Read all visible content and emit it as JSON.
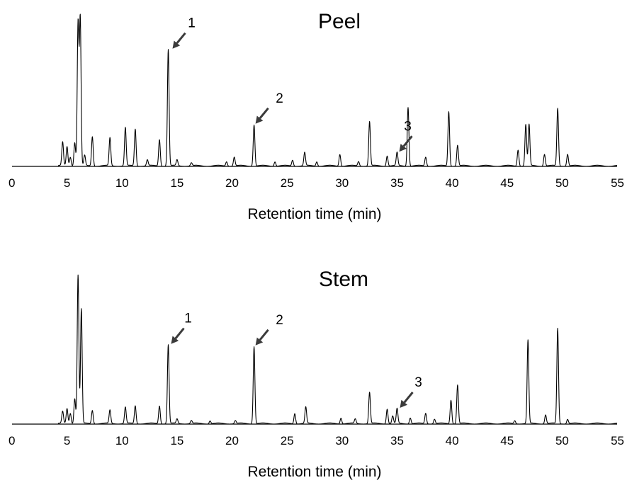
{
  "chart_data": [
    {
      "type": "line",
      "title": "Peel",
      "xlabel": "Retention time (min)",
      "ylabel": "",
      "xlim": [
        0,
        55
      ],
      "x_ticks": [
        0,
        5,
        10,
        15,
        20,
        25,
        30,
        35,
        40,
        45,
        50,
        55
      ],
      "grid": false,
      "legend": "none",
      "peaks": [
        {
          "x": 4.6,
          "y": 0.16
        },
        {
          "x": 5.0,
          "y": 0.13
        },
        {
          "x": 5.3,
          "y": 0.06
        },
        {
          "x": 5.7,
          "y": 0.16
        },
        {
          "x": 6.0,
          "y": 0.97
        },
        {
          "x": 6.2,
          "y": 1.0
        },
        {
          "x": 6.6,
          "y": 0.07
        },
        {
          "x": 7.3,
          "y": 0.2
        },
        {
          "x": 8.9,
          "y": 0.19
        },
        {
          "x": 10.3,
          "y": 0.26
        },
        {
          "x": 11.2,
          "y": 0.25
        },
        {
          "x": 12.3,
          "y": 0.04
        },
        {
          "x": 13.4,
          "y": 0.18
        },
        {
          "x": 14.2,
          "y": 0.79
        },
        {
          "x": 15.0,
          "y": 0.04
        },
        {
          "x": 16.3,
          "y": 0.02
        },
        {
          "x": 19.5,
          "y": 0.03
        },
        {
          "x": 20.2,
          "y": 0.06
        },
        {
          "x": 22.0,
          "y": 0.28
        },
        {
          "x": 23.9,
          "y": 0.03
        },
        {
          "x": 25.5,
          "y": 0.04
        },
        {
          "x": 26.6,
          "y": 0.09
        },
        {
          "x": 27.7,
          "y": 0.03
        },
        {
          "x": 29.8,
          "y": 0.08
        },
        {
          "x": 31.5,
          "y": 0.03
        },
        {
          "x": 32.5,
          "y": 0.3
        },
        {
          "x": 34.1,
          "y": 0.07
        },
        {
          "x": 35.0,
          "y": 0.09
        },
        {
          "x": 36.0,
          "y": 0.4
        },
        {
          "x": 37.6,
          "y": 0.06
        },
        {
          "x": 39.7,
          "y": 0.37
        },
        {
          "x": 40.5,
          "y": 0.14
        },
        {
          "x": 46.0,
          "y": 0.11
        },
        {
          "x": 46.7,
          "y": 0.28
        },
        {
          "x": 47.0,
          "y": 0.28
        },
        {
          "x": 48.4,
          "y": 0.08
        },
        {
          "x": 49.6,
          "y": 0.39
        },
        {
          "x": 50.5,
          "y": 0.08
        }
      ],
      "annotations": [
        {
          "label": "1",
          "x": 14.2,
          "y": 0.79
        },
        {
          "label": "2",
          "x": 22.0,
          "y": 0.28
        },
        {
          "label": "3",
          "x": 35.0,
          "y": 0.09
        }
      ]
    },
    {
      "type": "line",
      "title": "Stem",
      "xlabel": "Retention time (min)",
      "ylabel": "",
      "xlim": [
        0,
        55
      ],
      "x_ticks": [
        0,
        5,
        10,
        15,
        20,
        25,
        30,
        35,
        40,
        45,
        50,
        55
      ],
      "grid": false,
      "legend": "none",
      "peaks": [
        {
          "x": 4.6,
          "y": 0.08
        },
        {
          "x": 5.0,
          "y": 0.1
        },
        {
          "x": 5.3,
          "y": 0.07
        },
        {
          "x": 5.7,
          "y": 0.17
        },
        {
          "x": 6.0,
          "y": 1.0
        },
        {
          "x": 6.3,
          "y": 0.77
        },
        {
          "x": 7.3,
          "y": 0.09
        },
        {
          "x": 8.9,
          "y": 0.09
        },
        {
          "x": 10.3,
          "y": 0.11
        },
        {
          "x": 11.2,
          "y": 0.12
        },
        {
          "x": 13.4,
          "y": 0.12
        },
        {
          "x": 14.2,
          "y": 0.53
        },
        {
          "x": 15.0,
          "y": 0.03
        },
        {
          "x": 16.3,
          "y": 0.02
        },
        {
          "x": 18.0,
          "y": 0.02
        },
        {
          "x": 20.3,
          "y": 0.02
        },
        {
          "x": 22.0,
          "y": 0.52
        },
        {
          "x": 25.7,
          "y": 0.07
        },
        {
          "x": 26.7,
          "y": 0.11
        },
        {
          "x": 29.9,
          "y": 0.04
        },
        {
          "x": 31.2,
          "y": 0.03
        },
        {
          "x": 32.5,
          "y": 0.21
        },
        {
          "x": 34.1,
          "y": 0.1
        },
        {
          "x": 34.6,
          "y": 0.05
        },
        {
          "x": 35.0,
          "y": 0.1
        },
        {
          "x": 36.2,
          "y": 0.04
        },
        {
          "x": 37.6,
          "y": 0.07
        },
        {
          "x": 38.4,
          "y": 0.03
        },
        {
          "x": 39.9,
          "y": 0.16
        },
        {
          "x": 40.5,
          "y": 0.26
        },
        {
          "x": 45.7,
          "y": 0.02
        },
        {
          "x": 46.9,
          "y": 0.56
        },
        {
          "x": 48.5,
          "y": 0.06
        },
        {
          "x": 49.6,
          "y": 0.64
        },
        {
          "x": 50.5,
          "y": 0.03
        }
      ],
      "annotations": [
        {
          "label": "1",
          "x": 14.2,
          "y": 0.53
        },
        {
          "label": "2",
          "x": 22.0,
          "y": 0.52
        },
        {
          "label": "3",
          "x": 35.0,
          "y": 0.1
        }
      ]
    }
  ]
}
